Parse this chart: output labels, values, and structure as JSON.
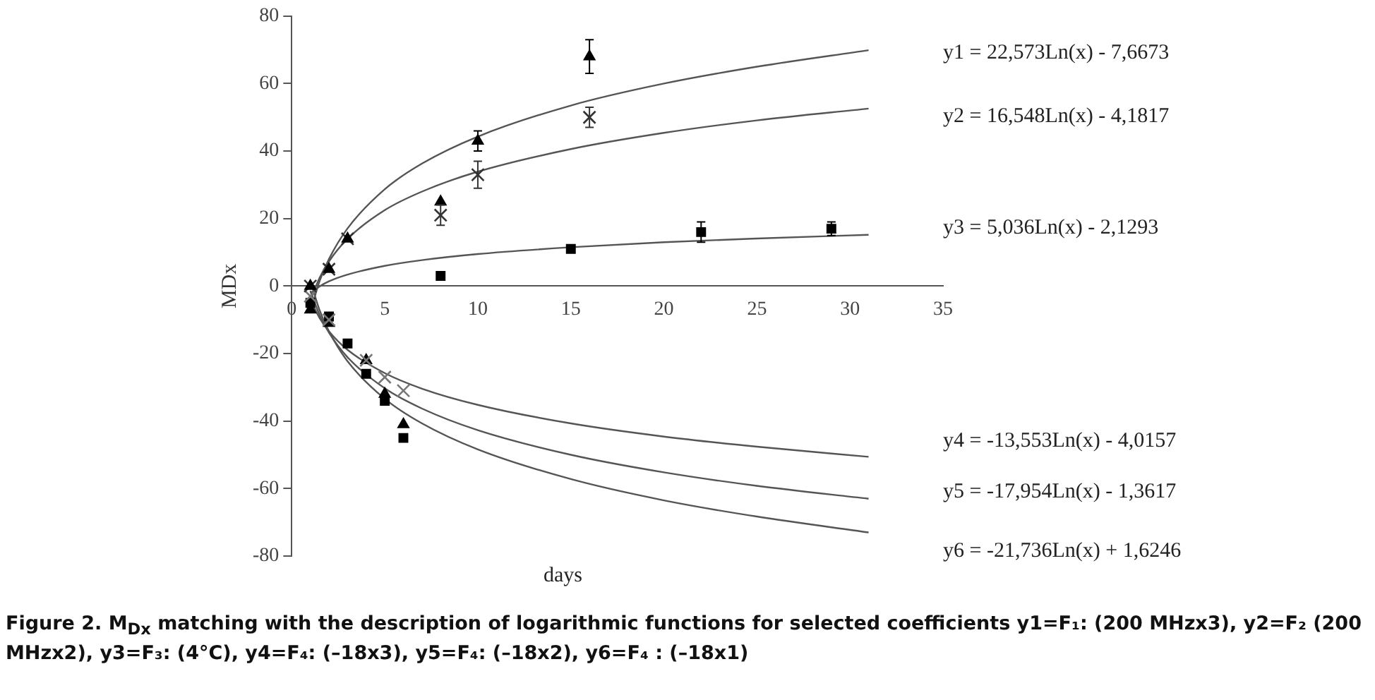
{
  "chart_data": {
    "type": "scatter",
    "xlabel": "days",
    "ylabel": "MDx",
    "xlim": [
      0,
      35
    ],
    "ylim": [
      -80,
      80
    ],
    "xticks": [
      0,
      5,
      10,
      15,
      20,
      25,
      30,
      35
    ],
    "yticks": [
      -80,
      -60,
      -40,
      -20,
      0,
      20,
      40,
      60,
      80
    ],
    "series": [
      {
        "type": "scatter",
        "marker": "triangle",
        "color": "#000000",
        "x": [
          1,
          2,
          3,
          8,
          10,
          16
        ],
        "values": [
          0,
          5,
          14,
          25,
          43,
          68
        ],
        "errors": [
          null,
          null,
          null,
          null,
          3,
          5
        ]
      },
      {
        "type": "scatter",
        "marker": "cross",
        "color": "#333333",
        "x": [
          1,
          2,
          3,
          8,
          10,
          16
        ],
        "values": [
          0,
          5,
          14,
          21,
          33,
          50
        ],
        "errors": [
          null,
          null,
          null,
          3,
          4,
          3
        ]
      },
      {
        "type": "scatter",
        "marker": "square",
        "color": "#000000",
        "x": [
          8,
          15,
          22,
          29
        ],
        "values": [
          3,
          11,
          16,
          17
        ],
        "errors": [
          null,
          null,
          3,
          2
        ]
      },
      {
        "type": "scatter",
        "marker": "cross",
        "color": "#777777",
        "x": [
          1,
          2,
          4,
          5,
          6
        ],
        "values": [
          -3,
          -10,
          -22,
          -27,
          -31
        ]
      },
      {
        "type": "scatter",
        "marker": "triangle",
        "color": "#000000",
        "x": [
          1,
          2,
          4,
          5,
          6
        ],
        "values": [
          -7,
          -11,
          -22,
          -32,
          -41
        ]
      },
      {
        "type": "scatter",
        "marker": "square",
        "color": "#000000",
        "x": [
          1,
          2,
          3,
          4,
          5,
          6
        ],
        "values": [
          -5,
          -9,
          -17,
          -26,
          -34,
          -45
        ]
      },
      {
        "type": "line",
        "marker": "none",
        "line_style": "solid",
        "color": "#555555",
        "x": [
          1,
          1.5,
          2,
          3,
          5,
          7,
          10,
          15,
          20,
          25,
          31
        ],
        "values": [
          -7.7,
          1.5,
          8.0,
          17.1,
          28.7,
          36.3,
          44.3,
          53.5,
          60.0,
          65.0,
          69.9
        ]
      },
      {
        "type": "line",
        "marker": "none",
        "line_style": "solid",
        "color": "#555555",
        "x": [
          1,
          1.5,
          2,
          3,
          5,
          7,
          10,
          15,
          20,
          25,
          31
        ],
        "values": [
          -4.2,
          2.5,
          7.3,
          14.0,
          22.5,
          28.0,
          33.9,
          40.6,
          45.4,
          49.1,
          52.6
        ]
      },
      {
        "type": "line",
        "marker": "none",
        "line_style": "solid",
        "color": "#555555",
        "x": [
          1,
          1.5,
          2,
          3,
          5,
          7,
          10,
          15,
          20,
          25,
          31
        ],
        "values": [
          -2.1,
          -0.1,
          1.4,
          3.4,
          6.0,
          7.7,
          9.5,
          11.5,
          13.0,
          14.1,
          15.2
        ]
      },
      {
        "type": "line",
        "marker": "none",
        "line_style": "solid",
        "color": "#555555",
        "x": [
          1,
          1.5,
          2,
          3,
          5,
          7,
          10,
          15,
          20,
          25,
          31
        ],
        "values": [
          -4.0,
          -9.5,
          -13.4,
          -18.9,
          -25.8,
          -30.4,
          -35.2,
          -40.7,
          -44.6,
          -47.6,
          -50.6
        ]
      },
      {
        "type": "line",
        "marker": "none",
        "line_style": "solid",
        "color": "#555555",
        "x": [
          1,
          1.5,
          2,
          3,
          5,
          7,
          10,
          15,
          20,
          25,
          31
        ],
        "values": [
          -1.4,
          -8.6,
          -13.8,
          -21.1,
          -30.3,
          -36.3,
          -42.7,
          -50.0,
          -55.2,
          -59.2,
          -63.0
        ]
      },
      {
        "type": "line",
        "marker": "none",
        "line_style": "solid",
        "color": "#555555",
        "x": [
          1,
          1.5,
          2,
          3,
          5,
          7,
          10,
          15,
          20,
          25,
          31
        ],
        "values": [
          1.6,
          -7.2,
          -13.4,
          -22.3,
          -33.4,
          -40.7,
          -48.4,
          -57.2,
          -63.5,
          -68.3,
          -73.0
        ]
      }
    ],
    "annotations": [
      "y1 = 22,573Ln(x) - 7,6673",
      "y2 = 16,548Ln(x) - 4,1817",
      "y3 = 5,036Ln(x) - 2,1293",
      "y4 = -13,553Ln(x) - 4,0157",
      "y5 = -17,954Ln(x) - 1,3617",
      "y6 = -21,736Ln(x) + 1,6246",
      "Figure 2. M$_{Dx}$ matching with the description of logarithmic functions for selected coefficients y1=F₁: (200 MHzx3), y2=F₂ (200 MHzx2), y3=F₃: (4°C), y4=F₄: (–18x3), y5=F₄: (–18x2), y6=F₄ : (–18x1)"
    ]
  }
}
